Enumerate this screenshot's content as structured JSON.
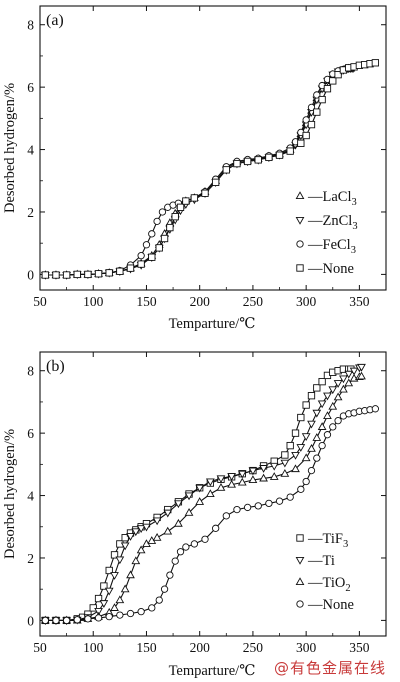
{
  "watermark": "@有色金属在线",
  "chart_data": [
    {
      "type": "line",
      "panel_label": "(a)",
      "xlabel": "Temparture/℃",
      "ylabel": "Desorbed hydrogen/%",
      "xlim": [
        50,
        375
      ],
      "ylim": [
        -0.5,
        8.6
      ],
      "xticks": [
        50,
        100,
        150,
        200,
        250,
        300,
        350
      ],
      "yticks": [
        0,
        2,
        4,
        6,
        8
      ],
      "legend_position": "right-center",
      "series": [
        {
          "name": "LaCl3",
          "label_base": "LaCl",
          "label_sub": "3",
          "marker": "triangle-up",
          "x": [
            55,
            65,
            75,
            85,
            95,
            105,
            115,
            125,
            135,
            145,
            155,
            162,
            167,
            172,
            177,
            182,
            187,
            195,
            205,
            215,
            225,
            235,
            245,
            255,
            265,
            275,
            285,
            290,
            295,
            300,
            305,
            310,
            315,
            320,
            325,
            330,
            335,
            338,
            340,
            342
          ],
          "y": [
            -0.02,
            -0.02,
            -0.02,
            0.0,
            0.0,
            0.02,
            0.05,
            0.1,
            0.2,
            0.35,
            0.6,
            0.95,
            1.3,
            1.65,
            1.95,
            2.2,
            2.35,
            2.45,
            2.65,
            3.0,
            3.4,
            3.6,
            3.65,
            3.7,
            3.78,
            3.85,
            4.0,
            4.2,
            4.5,
            4.85,
            5.25,
            5.65,
            5.95,
            6.2,
            6.4,
            6.5,
            6.55,
            6.58,
            6.6,
            6.6
          ]
        },
        {
          "name": "ZnCl3",
          "label_base": "ZnCl",
          "label_sub": "3",
          "marker": "triangle-down",
          "x": [
            55,
            65,
            75,
            85,
            95,
            105,
            115,
            125,
            135,
            145,
            155,
            162,
            167,
            172,
            177,
            182,
            187,
            195,
            205,
            215,
            225,
            235,
            245,
            255,
            265,
            275,
            285,
            290,
            295,
            300,
            305,
            310,
            315,
            320,
            325,
            330,
            335,
            338,
            340,
            342,
            344
          ],
          "y": [
            -0.02,
            -0.02,
            -0.02,
            0.0,
            0.0,
            0.02,
            0.05,
            0.1,
            0.18,
            0.3,
            0.55,
            0.85,
            1.15,
            1.45,
            1.75,
            2.05,
            2.25,
            2.4,
            2.6,
            2.95,
            3.35,
            3.55,
            3.62,
            3.67,
            3.75,
            3.83,
            3.98,
            4.15,
            4.45,
            4.8,
            5.2,
            5.6,
            5.95,
            6.2,
            6.4,
            6.5,
            6.55,
            6.58,
            6.6,
            6.6,
            6.6
          ]
        },
        {
          "name": "FeCl3",
          "label_base": "FeCl",
          "label_sub": "3",
          "marker": "circle",
          "x": [
            55,
            65,
            75,
            85,
            95,
            105,
            115,
            125,
            135,
            145,
            150,
            155,
            160,
            165,
            170,
            175,
            180,
            187,
            195,
            205,
            215,
            225,
            235,
            245,
            255,
            265,
            275,
            285,
            290,
            295,
            300,
            305,
            310,
            315,
            320,
            325,
            330,
            335,
            338,
            340,
            342
          ],
          "y": [
            -0.02,
            -0.02,
            -0.02,
            0.0,
            0.0,
            0.02,
            0.05,
            0.12,
            0.3,
            0.6,
            0.95,
            1.3,
            1.7,
            2.0,
            2.15,
            2.22,
            2.28,
            2.35,
            2.45,
            2.65,
            3.05,
            3.45,
            3.62,
            3.68,
            3.72,
            3.8,
            3.88,
            4.05,
            4.25,
            4.55,
            4.95,
            5.35,
            5.75,
            6.05,
            6.25,
            6.42,
            6.52,
            6.57,
            6.6,
            6.6,
            6.6
          ]
        },
        {
          "name": "None",
          "marker": "square",
          "x": [
            55,
            65,
            75,
            85,
            95,
            105,
            115,
            125,
            135,
            145,
            155,
            162,
            167,
            172,
            177,
            182,
            187,
            195,
            205,
            215,
            225,
            235,
            245,
            255,
            265,
            275,
            285,
            295,
            300,
            305,
            310,
            315,
            320,
            325,
            330,
            335,
            340,
            345,
            350,
            355,
            360,
            365
          ],
          "y": [
            -0.02,
            -0.02,
            -0.02,
            0.0,
            0.0,
            0.02,
            0.05,
            0.1,
            0.2,
            0.33,
            0.55,
            0.85,
            1.15,
            1.5,
            1.85,
            2.15,
            2.35,
            2.45,
            2.6,
            2.95,
            3.35,
            3.55,
            3.62,
            3.67,
            3.75,
            3.82,
            3.95,
            4.2,
            4.45,
            4.8,
            5.2,
            5.6,
            5.95,
            6.2,
            6.4,
            6.55,
            6.62,
            6.65,
            6.7,
            6.72,
            6.75,
            6.78
          ]
        }
      ]
    },
    {
      "type": "line",
      "panel_label": "(b)",
      "xlabel": "Temparture/℃",
      "ylabel": "Desorbed hydrogen/%",
      "xlim": [
        50,
        375
      ],
      "ylim": [
        -0.5,
        8.6
      ],
      "xticks": [
        50,
        100,
        150,
        200,
        250,
        300,
        350
      ],
      "yticks": [
        0,
        2,
        4,
        6,
        8
      ],
      "legend_position": "bottom-right",
      "series": [
        {
          "name": "TiF3",
          "label_base": "TiF",
          "label_sub": "3",
          "marker": "square",
          "x": [
            55,
            65,
            75,
            85,
            90,
            95,
            100,
            105,
            110,
            115,
            120,
            125,
            130,
            135,
            140,
            145,
            150,
            160,
            170,
            180,
            190,
            200,
            210,
            220,
            230,
            240,
            250,
            260,
            270,
            280,
            285,
            290,
            295,
            300,
            305,
            310,
            315,
            320,
            325,
            330,
            335,
            340,
            342
          ],
          "y": [
            0.0,
            0.0,
            0.0,
            0.05,
            0.1,
            0.2,
            0.4,
            0.7,
            1.1,
            1.6,
            2.1,
            2.45,
            2.65,
            2.8,
            2.9,
            3.0,
            3.1,
            3.3,
            3.55,
            3.8,
            4.05,
            4.25,
            4.4,
            4.52,
            4.6,
            4.7,
            4.8,
            4.95,
            5.1,
            5.3,
            5.6,
            6.0,
            6.5,
            6.9,
            7.2,
            7.45,
            7.65,
            7.85,
            7.95,
            8.0,
            8.05,
            8.05,
            8.05
          ]
        },
        {
          "name": "Ti",
          "marker": "triangle-down",
          "x": [
            55,
            65,
            75,
            85,
            95,
            105,
            110,
            115,
            120,
            125,
            130,
            135,
            140,
            145,
            150,
            160,
            170,
            180,
            190,
            200,
            210,
            220,
            230,
            240,
            250,
            260,
            270,
            280,
            290,
            295,
            300,
            305,
            310,
            315,
            320,
            325,
            330,
            335,
            340,
            345,
            350,
            352
          ],
          "y": [
            0.0,
            0.0,
            0.0,
            0.02,
            0.1,
            0.3,
            0.55,
            0.95,
            1.45,
            1.95,
            2.4,
            2.7,
            2.85,
            2.95,
            3.0,
            3.2,
            3.45,
            3.75,
            4.0,
            4.25,
            4.45,
            4.55,
            4.62,
            4.7,
            4.8,
            4.88,
            4.95,
            5.05,
            5.3,
            5.55,
            5.9,
            6.3,
            6.65,
            6.95,
            7.2,
            7.4,
            7.6,
            7.75,
            7.9,
            8.0,
            8.1,
            8.12
          ]
        },
        {
          "name": "TiO2",
          "label_base": "TiO",
          "label_sub": "2",
          "marker": "triangle-up",
          "x": [
            55,
            65,
            75,
            85,
            95,
            105,
            115,
            120,
            125,
            130,
            135,
            140,
            145,
            150,
            155,
            160,
            170,
            180,
            190,
            200,
            210,
            220,
            230,
            240,
            250,
            260,
            270,
            280,
            290,
            300,
            305,
            310,
            315,
            320,
            325,
            330,
            335,
            340,
            345,
            350,
            352
          ],
          "y": [
            0.0,
            0.0,
            0.0,
            0.0,
            0.05,
            0.12,
            0.25,
            0.4,
            0.65,
            1.0,
            1.45,
            1.9,
            2.25,
            2.45,
            2.55,
            2.65,
            2.85,
            3.1,
            3.45,
            3.8,
            4.05,
            4.25,
            4.35,
            4.42,
            4.5,
            4.55,
            4.6,
            4.7,
            4.85,
            5.2,
            5.5,
            5.85,
            6.2,
            6.55,
            6.85,
            7.15,
            7.4,
            7.6,
            7.75,
            7.8,
            7.82
          ]
        },
        {
          "name": "None",
          "marker": "circle",
          "x": [
            55,
            65,
            75,
            85,
            95,
            105,
            115,
            125,
            135,
            145,
            155,
            162,
            167,
            172,
            177,
            182,
            187,
            195,
            205,
            215,
            225,
            235,
            245,
            255,
            265,
            275,
            285,
            295,
            300,
            305,
            310,
            315,
            320,
            325,
            330,
            335,
            340,
            345,
            350,
            355,
            360,
            365
          ],
          "y": [
            0.0,
            0.0,
            0.0,
            0.02,
            0.05,
            0.08,
            0.12,
            0.17,
            0.22,
            0.28,
            0.4,
            0.65,
            1.0,
            1.45,
            1.9,
            2.2,
            2.35,
            2.45,
            2.6,
            2.95,
            3.35,
            3.55,
            3.62,
            3.67,
            3.75,
            3.82,
            3.95,
            4.2,
            4.45,
            4.8,
            5.2,
            5.6,
            5.95,
            6.2,
            6.4,
            6.55,
            6.62,
            6.65,
            6.7,
            6.72,
            6.75,
            6.78
          ]
        }
      ]
    }
  ]
}
